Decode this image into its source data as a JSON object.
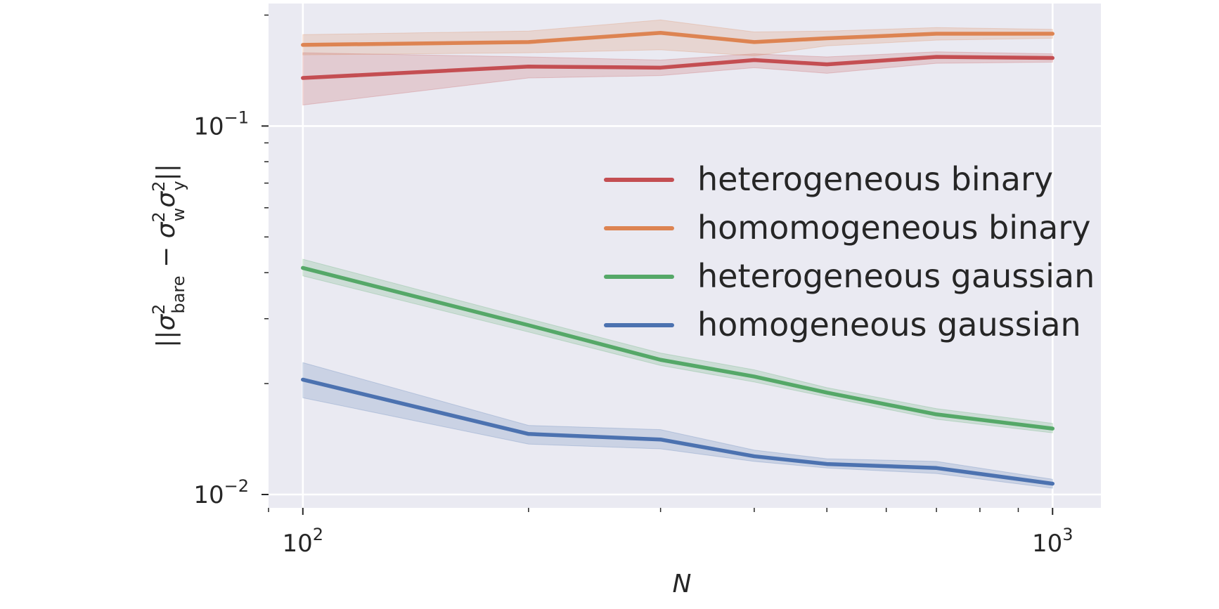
{
  "chart_data": {
    "type": "line",
    "x_scale": "log",
    "y_scale": "log",
    "xlim": [
      90,
      1160
    ],
    "ylim": [
      0.0092,
      0.215
    ],
    "xlabel": "N",
    "ylabel_parts": {
      "open": "||",
      "sigma": "σ",
      "sup2": "2",
      "sub_bare": "bare",
      "minus": " − ",
      "sub_w": "w",
      "sub_y": "y",
      "close": "||"
    },
    "x_major_ticks": [
      {
        "value": 100,
        "base": "10",
        "exp": "2"
      },
      {
        "value": 1000,
        "base": "10",
        "exp": "3"
      }
    ],
    "y_major_ticks": [
      {
        "value": 0.01,
        "base": "10",
        "exp": "−2"
      },
      {
        "value": 0.1,
        "base": "10",
        "exp": "−1"
      }
    ],
    "grid": true,
    "background": "#eaeaf2",
    "legend_position": "center-right",
    "x": [
      100,
      200,
      300,
      400,
      500,
      700,
      1000
    ],
    "series": [
      {
        "name": "heterogeneous binary",
        "color": "#c44e52",
        "values": [
          0.135,
          0.145,
          0.144,
          0.151,
          0.147,
          0.154,
          0.153
        ],
        "lower": [
          0.114,
          0.135,
          0.137,
          0.144,
          0.139,
          0.148,
          0.149
        ],
        "upper": [
          0.158,
          0.154,
          0.151,
          0.157,
          0.154,
          0.159,
          0.157
        ]
      },
      {
        "name": "homomogeneous binary",
        "color": "#dd8452",
        "values": [
          0.166,
          0.169,
          0.179,
          0.169,
          0.173,
          0.178,
          0.178
        ],
        "lower": [
          0.156,
          0.158,
          0.161,
          0.155,
          0.165,
          0.171,
          0.173
        ],
        "upper": [
          0.177,
          0.181,
          0.194,
          0.18,
          0.181,
          0.185,
          0.183
        ]
      },
      {
        "name": "heterogeneous gaussian",
        "color": "#55a868",
        "values": [
          0.0412,
          0.0288,
          0.0232,
          0.0209,
          0.0189,
          0.0165,
          0.0151
        ],
        "lower": [
          0.0392,
          0.0276,
          0.0224,
          0.0202,
          0.0184,
          0.016,
          0.0147
        ],
        "upper": [
          0.0435,
          0.03,
          0.0242,
          0.0218,
          0.0195,
          0.0171,
          0.0156
        ]
      },
      {
        "name": "homogeneous gaussian",
        "color": "#4c72b0",
        "values": [
          0.0205,
          0.0146,
          0.0141,
          0.0127,
          0.0121,
          0.0118,
          0.0107
        ],
        "lower": [
          0.0183,
          0.0137,
          0.0133,
          0.0123,
          0.0118,
          0.0114,
          0.0104
        ],
        "upper": [
          0.0228,
          0.0154,
          0.015,
          0.0132,
          0.0125,
          0.0123,
          0.011
        ]
      }
    ]
  }
}
